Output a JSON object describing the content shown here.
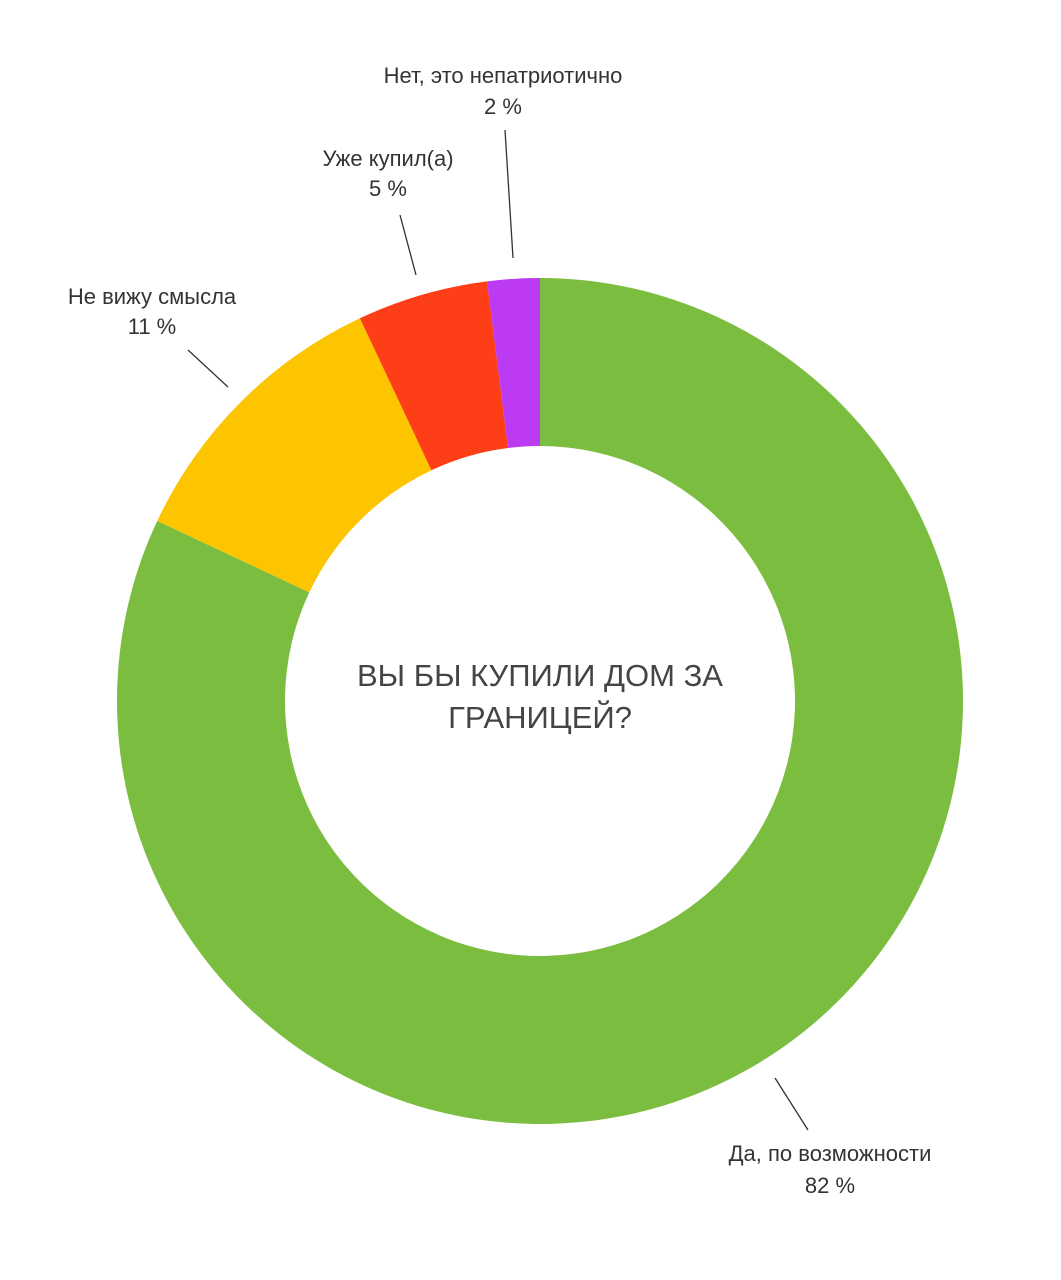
{
  "chart_data": {
    "type": "donut",
    "title": "ВЫ БЫ КУПИЛИ ДОМ ЗА ГРАНИЦЕЙ?",
    "categories": [
      "Да, по возможности",
      "Не вижу смысла",
      "Уже купил(а)",
      "Нет, это непатриотично"
    ],
    "values": [
      82,
      11,
      5,
      2
    ],
    "value_labels": [
      "82 %",
      "11 %",
      "5 %",
      "2 %"
    ],
    "colors": [
      "#7bbd3f",
      "#fcc500",
      "#fe3e16",
      "#bb3af2"
    ]
  }
}
